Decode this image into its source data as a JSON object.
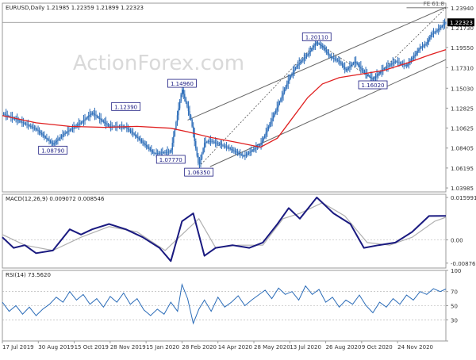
{
  "chart_data": [
    {
      "type": "line",
      "panel": "price",
      "title": "EURUSD,Daily  1.21985 1.22359 1.21899 1.22323",
      "watermark": "ActionForex.com",
      "fib_label": "FE 61.8",
      "y_ticks": [
        "1.23940",
        "1.21730",
        "1.19550",
        "1.17310",
        "1.15030",
        "1.12825",
        "1.10625",
        "1.08405",
        "1.06195",
        "1.03985"
      ],
      "ylim": [
        1.0355,
        1.2445
      ],
      "current_price": 1.22323,
      "current_price_label": "1.22323",
      "x_ticks": [
        "17 Jul 2019",
        "30 Aug 2019",
        "15 Oct 2019",
        "28 Nov 2019",
        "15 Jan 2020",
        "28 Feb 2020",
        "14 Apr 2020",
        "28 May 2020",
        "13 Jul 2020",
        "26 Aug 2020",
        "9 Oct 2020",
        "24 Nov 2020"
      ],
      "x_tick_values": [
        0,
        32,
        64,
        96,
        128,
        160,
        192,
        224,
        256,
        288,
        320,
        352
      ],
      "xlim": [
        0,
        395
      ],
      "series": [
        {
          "name": "",
          "kind": "candles",
          "color": "#2b6cb8",
          "x": [
            0,
            15,
            30,
            45,
            55,
            70,
            80,
            95,
            110,
            120,
            135,
            150,
            160,
            168,
            175,
            180,
            185,
            200,
            215,
            230,
            245,
            255,
            262,
            270,
            280,
            286,
            292,
            300,
            306,
            314,
            322,
            330,
            340,
            350,
            360,
            366,
            372,
            378,
            382,
            388,
            395
          ],
          "close": [
            1.122,
            1.114,
            1.105,
            1.088,
            1.1,
            1.112,
            1.123,
            1.108,
            1.107,
            1.096,
            1.078,
            1.08,
            1.1496,
            1.115,
            1.0635,
            1.09,
            1.092,
            1.085,
            1.075,
            1.088,
            1.13,
            1.16,
            1.175,
            1.185,
            1.2011,
            1.195,
            1.185,
            1.18,
            1.17,
            1.18,
            1.168,
            1.1602,
            1.172,
            1.18,
            1.175,
            1.185,
            1.195,
            1.2,
            1.21,
            1.215,
            1.22323
          ]
        },
        {
          "name": "",
          "kind": "moving-average",
          "color": "#e02020",
          "x": [
            0,
            30,
            60,
            90,
            120,
            150,
            165,
            185,
            210,
            230,
            245,
            260,
            272,
            285,
            300,
            320,
            340,
            360,
            380,
            395
          ],
          "values": [
            1.12,
            1.112,
            1.108,
            1.107,
            1.108,
            1.106,
            1.102,
            1.096,
            1.09,
            1.085,
            1.095,
            1.12,
            1.14,
            1.155,
            1.162,
            1.166,
            1.17,
            1.178,
            1.187,
            1.193
          ]
        }
      ],
      "channel": {
        "upper": {
          "x": [
            165,
            395
          ],
          "y": [
            1.115,
            1.24
          ]
        },
        "lower": {
          "x": [
            185,
            395
          ],
          "y": [
            1.0635,
            1.182
          ]
        },
        "color": "#666666"
      },
      "dashed_projection": {
        "x": [
          175,
          280,
          330,
          395
        ],
        "y": [
          1.0635,
          1.2011,
          1.1602,
          1.2394
        ]
      },
      "fib_line": {
        "x": [
          360,
          395
        ],
        "y": [
          1.2394,
          1.2394
        ]
      },
      "annotations": [
        {
          "text": "1.14960",
          "x": 160,
          "y": 1.1496
        },
        {
          "text": "1.12390",
          "x": 110,
          "y": 1.1239
        },
        {
          "text": "1.08790",
          "x": 45,
          "y": 1.0879
        },
        {
          "text": "1.07770",
          "x": 150,
          "y": 1.0777
        },
        {
          "text": "1.06350",
          "x": 175,
          "y": 1.0635
        },
        {
          "text": "1.20110",
          "x": 280,
          "y": 1.2011
        },
        {
          "text": "1.16020",
          "x": 330,
          "y": 1.1602
        }
      ]
    },
    {
      "type": "line",
      "panel": "macd",
      "title": "MACD(12,26,9) 0.009072 0.008546",
      "y_ticks": [
        "0.015991",
        "0.00",
        "-0.00876"
      ],
      "y_tick_values": [
        0.015991,
        0.0,
        -0.00876
      ],
      "ylim": [
        -0.0106,
        0.0172
      ],
      "series": [
        {
          "name": "",
          "kind": "macd",
          "color": "#1a1a80",
          "x": [
            0,
            10,
            20,
            30,
            45,
            60,
            70,
            80,
            95,
            110,
            125,
            140,
            150,
            160,
            170,
            180,
            190,
            205,
            220,
            232,
            245,
            255,
            265,
            280,
            295,
            310,
            322,
            335,
            350,
            365,
            380,
            395
          ],
          "values": [
            0.001,
            -0.003,
            -0.002,
            -0.005,
            -0.004,
            0.004,
            0.002,
            0.004,
            0.006,
            0.004,
            0.001,
            -0.003,
            -0.008,
            0.007,
            0.01,
            -0.006,
            -0.003,
            -0.002,
            -0.003,
            -0.001,
            0.006,
            0.012,
            0.008,
            0.016,
            0.01,
            0.006,
            -0.003,
            -0.002,
            -0.001,
            0.003,
            0.009,
            0.009072
          ]
        },
        {
          "name": "",
          "kind": "signal",
          "color": "#b0b0b0",
          "x": [
            0,
            20,
            45,
            70,
            95,
            120,
            145,
            160,
            175,
            190,
            210,
            232,
            250,
            265,
            285,
            305,
            325,
            345,
            365,
            385,
            395
          ],
          "values": [
            0.002,
            -0.002,
            -0.004,
            0.001,
            0.005,
            0.003,
            -0.004,
            0.002,
            0.008,
            -0.003,
            -0.002,
            -0.002,
            0.008,
            0.01,
            0.014,
            0.009,
            -0.001,
            -0.002,
            0.001,
            0.007,
            0.008546
          ]
        }
      ]
    },
    {
      "type": "line",
      "panel": "rsi",
      "title": "RSI(14) 73.5620",
      "y_ticks": [
        "100",
        "70",
        "50",
        "30",
        "0"
      ],
      "y_tick_values": [
        100,
        70,
        50,
        30,
        0
      ],
      "ylim": [
        0,
        100
      ],
      "reference_lines": [
        70,
        50,
        30
      ],
      "series": [
        {
          "name": "",
          "kind": "rsi",
          "color": "#2b6cb8",
          "x": [
            0,
            6,
            12,
            18,
            24,
            30,
            36,
            42,
            48,
            54,
            60,
            66,
            72,
            78,
            84,
            90,
            96,
            102,
            108,
            114,
            120,
            126,
            132,
            138,
            144,
            150,
            156,
            160,
            165,
            170,
            175,
            180,
            186,
            192,
            198,
            204,
            210,
            216,
            222,
            228,
            234,
            240,
            246,
            252,
            258,
            264,
            270,
            276,
            282,
            288,
            294,
            300,
            306,
            312,
            318,
            324,
            330,
            336,
            342,
            348,
            354,
            360,
            366,
            372,
            378,
            384,
            390,
            395
          ],
          "values": [
            55,
            42,
            50,
            38,
            48,
            36,
            45,
            52,
            62,
            55,
            70,
            58,
            66,
            52,
            60,
            48,
            63,
            55,
            68,
            52,
            60,
            44,
            36,
            45,
            38,
            55,
            42,
            80,
            60,
            25,
            45,
            58,
            42,
            62,
            48,
            55,
            64,
            50,
            58,
            65,
            72,
            60,
            75,
            66,
            70,
            58,
            78,
            66,
            73,
            55,
            62,
            48,
            58,
            52,
            65,
            50,
            40,
            55,
            48,
            60,
            52,
            65,
            58,
            70,
            66,
            74,
            70,
            73.562
          ]
        }
      ]
    }
  ]
}
